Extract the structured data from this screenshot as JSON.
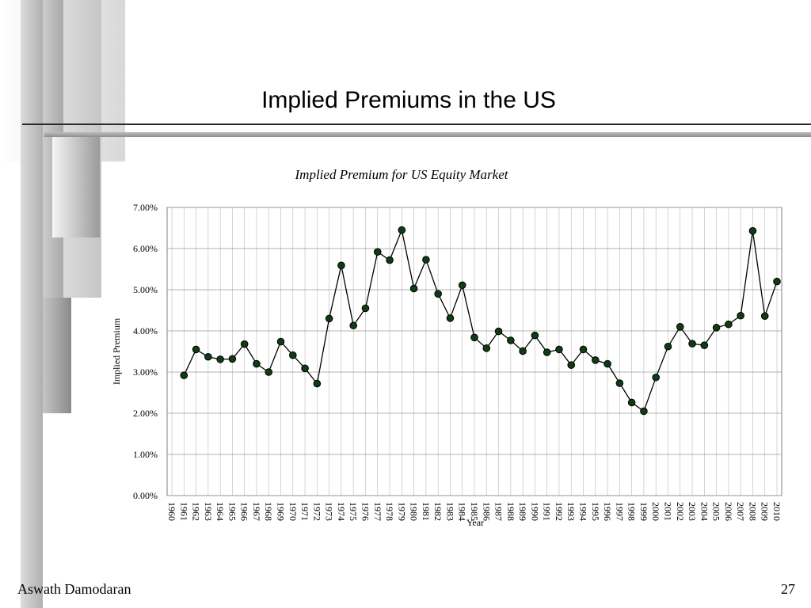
{
  "slide": {
    "title": "Implied Premiums in the US",
    "footer_author": "Aswath Damodaran",
    "page_number": "27"
  },
  "colors": {
    "marker_fill": "#0d3d14",
    "line": "#000000",
    "grid": "#b8b8b8",
    "rule_dark": "#2a2a2a",
    "rule_light": "#9a9a9a"
  },
  "chart_data": {
    "type": "line",
    "title": "Implied Premium for US Equity Market",
    "xlabel": "Year",
    "ylabel": "Implied Premium",
    "ylim": [
      0,
      7
    ],
    "yticks": [
      "0.00%",
      "1.00%",
      "2.00%",
      "3.00%",
      "4.00%",
      "5.00%",
      "6.00%",
      "7.00%"
    ],
    "grid": true,
    "legend": "none",
    "x": [
      "1960",
      "1961",
      "1962",
      "1963",
      "1964",
      "1965",
      "1966",
      "1967",
      "1968",
      "1969",
      "1970",
      "1971",
      "1972",
      "1973",
      "1974",
      "1975",
      "1976",
      "1977",
      "1978",
      "1979",
      "1980",
      "1981",
      "1982",
      "1983",
      "1984",
      "1985",
      "1986",
      "1987",
      "1988",
      "1989",
      "1990",
      "1991",
      "1992",
      "1993",
      "1994",
      "1995",
      "1996",
      "1997",
      "1998",
      "1999",
      "2000",
      "2001",
      "2002",
      "2003",
      "2004",
      "2005",
      "2006",
      "2007",
      "2008",
      "2009",
      "2010"
    ],
    "series": [
      {
        "values": [
          null,
          2.92,
          3.55,
          3.37,
          3.31,
          3.32,
          3.68,
          3.2,
          3.0,
          3.74,
          3.41,
          3.09,
          2.72,
          4.3,
          5.59,
          4.13,
          4.55,
          5.92,
          5.72,
          6.45,
          5.03,
          5.73,
          4.9,
          4.31,
          5.11,
          3.84,
          3.58,
          3.99,
          3.77,
          3.51,
          3.89,
          3.48,
          3.55,
          3.17,
          3.55,
          3.29,
          3.2,
          2.73,
          2.26,
          2.05,
          2.87,
          3.62,
          4.1,
          3.69,
          3.65,
          4.08,
          4.16,
          4.37,
          6.43,
          4.36,
          5.2
        ]
      }
    ]
  }
}
